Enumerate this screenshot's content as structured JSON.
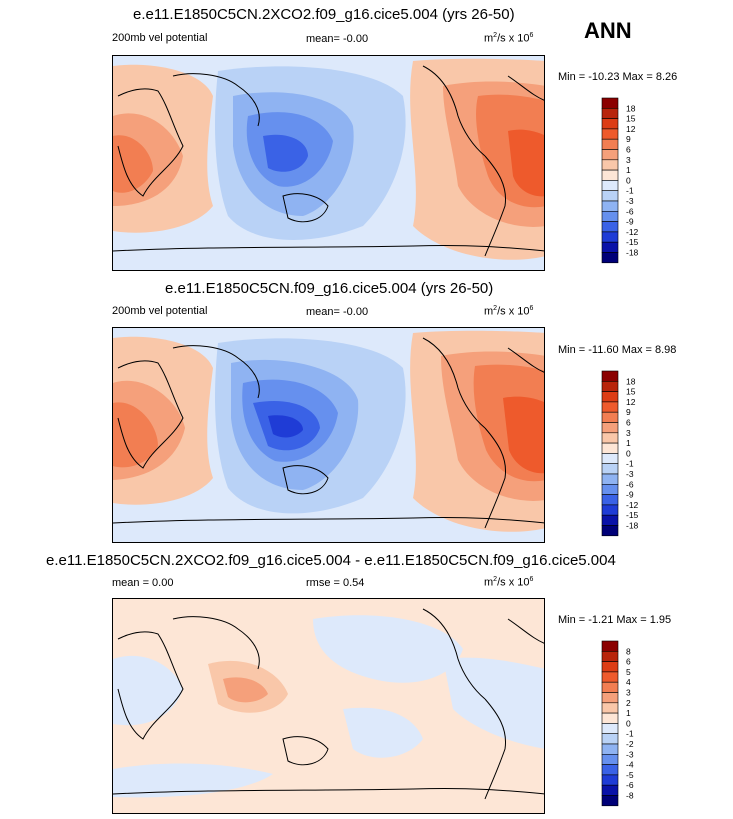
{
  "season": "ANN",
  "panels": [
    {
      "title": "e.e11.E1850C5CN.2XCO2.f09_g16.cice5.004 (yrs 26-50)",
      "left": "200mb vel potential",
      "center": "mean=  -0.00",
      "units_base": "m",
      "units_sup1": "2",
      "units_mid": "/s x 10",
      "units_sup2": "6",
      "minmax": "Min = -10.23 Max =   8.26",
      "levels": [
        "18",
        "15",
        "12",
        "9",
        "6",
        "3",
        "1",
        "0",
        "-1",
        "-3",
        "-6",
        "-9",
        "-12",
        "-15",
        "-18"
      ]
    },
    {
      "title": "e.e11.E1850C5CN.f09_g16.cice5.004 (yrs 26-50)",
      "left": "200mb vel potential",
      "center": "mean=  -0.00",
      "units_base": "m",
      "units_sup1": "2",
      "units_mid": "/s x 10",
      "units_sup2": "6",
      "minmax": "Min = -11.60 Max =   8.98",
      "levels": [
        "18",
        "15",
        "12",
        "9",
        "6",
        "3",
        "1",
        "0",
        "-1",
        "-3",
        "-6",
        "-9",
        "-12",
        "-15",
        "-18"
      ]
    },
    {
      "title": "e.e11.E1850C5CN.2XCO2.f09_g16.cice5.004 - e.e11.E1850C5CN.f09_g16.cice5.004",
      "left": "mean =  0.00",
      "center": "rmse =  0.54",
      "units_base": "m",
      "units_sup1": "2",
      "units_mid": "/s x 10",
      "units_sup2": "6",
      "minmax": "Min = -1.21 Max =   1.95",
      "levels": [
        "8",
        "6",
        "5",
        "4",
        "3",
        "2",
        "1",
        "0",
        "-1",
        "-2",
        "-3",
        "-4",
        "-5",
        "-6",
        "-8"
      ]
    }
  ],
  "colors": {
    "scale": [
      "#8b0000",
      "#b8240b",
      "#dc3c14",
      "#ee5a2c",
      "#f27e52",
      "#f5a07b",
      "#f9c7a9",
      "#fde6d6",
      "#dde9fb",
      "#b9d2f6",
      "#8fb3f2",
      "#6690ee",
      "#3a62e6",
      "#1f3cd6",
      "#0a12a8",
      "#000078"
    ],
    "land_line": "#000000"
  },
  "chart_data": [
    {
      "type": "heatmap",
      "title": "e.e11.E1850C5CN.2XCO2.f09_g16.cice5.004 (yrs 26-50)",
      "variable": "200mb vel potential",
      "units": "m2/s x 10^6",
      "mean": -0.0,
      "min": -10.23,
      "max": 8.26,
      "contour_levels": [
        -18,
        -15,
        -12,
        -9,
        -6,
        -3,
        -1,
        0,
        1,
        3,
        6,
        9,
        12,
        15,
        18
      ]
    },
    {
      "type": "heatmap",
      "title": "e.e11.E1850C5CN.f09_g16.cice5.004 (yrs 26-50)",
      "variable": "200mb vel potential",
      "units": "m2/s x 10^6",
      "mean": -0.0,
      "min": -11.6,
      "max": 8.98,
      "contour_levels": [
        -18,
        -15,
        -12,
        -9,
        -6,
        -3,
        -1,
        0,
        1,
        3,
        6,
        9,
        12,
        15,
        18
      ]
    },
    {
      "type": "heatmap",
      "title": "e.e11.E1850C5CN.2XCO2.f09_g16.cice5.004 - e.e11.E1850C5CN.f09_g16.cice5.004",
      "units": "m2/s x 10^6",
      "mean": 0.0,
      "rmse": 0.54,
      "min": -1.21,
      "max": 1.95,
      "contour_levels": [
        -8,
        -6,
        -5,
        -4,
        -3,
        -2,
        -1,
        0,
        1,
        2,
        3,
        4,
        5,
        6,
        8
      ]
    }
  ]
}
